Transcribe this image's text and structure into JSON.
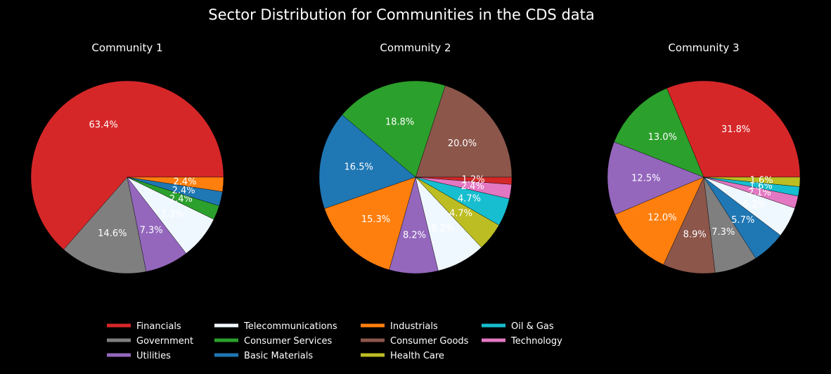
{
  "title": "Sector Distribution for Communities in the CDS data",
  "colors": {
    "Financials": "#d62728",
    "Government": "#7f7f7f",
    "Utilities": "#9467bd",
    "Telecommunications": "#f0f8ff",
    "Consumer Services": "#2ca02c",
    "Industrials": "#ff7f0e",
    "Basic Materials": "#1f77b4",
    "Consumer Goods": "#8c564b",
    "Health Care": "#bcbd22",
    "Oil & Gas": "#17becf",
    "Technology": "#e377c2"
  },
  "legend": [
    "Financials",
    "Government",
    "Utilities",
    "Telecommunications",
    "Consumer Services",
    "Basic Materials",
    "Industrials",
    "Consumer Goods",
    "Health Care",
    "Oil & Gas",
    "Technology"
  ],
  "chart_data": [
    {
      "type": "pie",
      "title": "Community 1",
      "slices": [
        {
          "label": "Financials",
          "value": 63.4
        },
        {
          "label": "Government",
          "value": 14.6
        },
        {
          "label": "Utilities",
          "value": 7.3
        },
        {
          "label": "Telecommunications",
          "value": 7.3
        },
        {
          "label": "Consumer Services",
          "value": 2.4
        },
        {
          "label": "Basic Materials",
          "value": 2.4
        },
        {
          "label": "Industrials",
          "value": 2.4
        }
      ]
    },
    {
      "type": "pie",
      "title": "Community 2",
      "slices": [
        {
          "label": "Consumer Goods",
          "value": 20.0
        },
        {
          "label": "Consumer Services",
          "value": 18.8
        },
        {
          "label": "Basic Materials",
          "value": 16.5
        },
        {
          "label": "Industrials",
          "value": 15.3
        },
        {
          "label": "Utilities",
          "value": 8.2
        },
        {
          "label": "Telecommunications",
          "value": 8.2
        },
        {
          "label": "Health Care",
          "value": 4.7
        },
        {
          "label": "Oil & Gas",
          "value": 4.7
        },
        {
          "label": "Technology",
          "value": 2.4
        },
        {
          "label": "Financials",
          "value": 1.2
        }
      ]
    },
    {
      "type": "pie",
      "title": "Community 3",
      "slices": [
        {
          "label": "Financials",
          "value": 31.8
        },
        {
          "label": "Consumer Services",
          "value": 13.0
        },
        {
          "label": "Utilities",
          "value": 12.5
        },
        {
          "label": "Industrials",
          "value": 12.0
        },
        {
          "label": "Consumer Goods",
          "value": 8.9
        },
        {
          "label": "Government",
          "value": 7.3
        },
        {
          "label": "Basic Materials",
          "value": 5.7
        },
        {
          "label": "Telecommunications",
          "value": 5.2
        },
        {
          "label": "Technology",
          "value": 2.1
        },
        {
          "label": "Oil & Gas",
          "value": 1.6
        },
        {
          "label": "Health Care",
          "value": 1.6
        }
      ]
    }
  ]
}
